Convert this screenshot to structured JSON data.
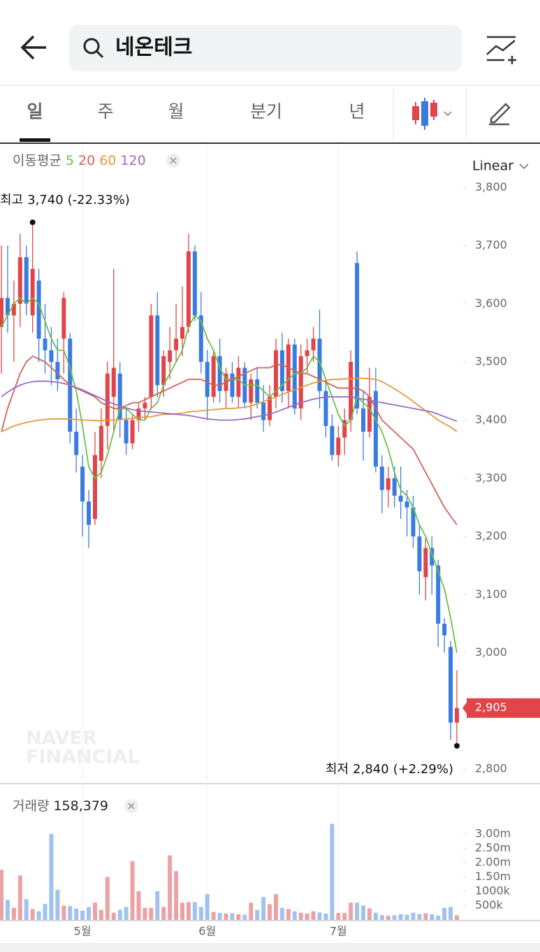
{
  "header": {
    "search": "네온테크"
  },
  "tabs": [
    "일",
    "주",
    "월",
    "분기",
    "년"
  ],
  "chart_data": {
    "type": "candlestick",
    "categories": [
      null,
      null,
      null,
      null,
      null,
      null,
      null,
      null,
      null,
      null,
      null,
      null,
      null,
      "5월",
      null,
      null,
      null,
      null,
      null,
      null,
      null,
      null,
      null,
      null,
      null,
      null,
      null,
      null,
      null,
      null,
      null,
      null,
      null,
      "6월",
      null,
      null,
      null,
      null,
      null,
      null,
      null,
      null,
      null,
      null,
      null,
      null,
      null,
      null,
      null,
      null,
      null,
      null,
      null,
      null,
      "7월",
      null,
      null,
      null,
      null,
      null,
      null,
      null,
      null,
      null,
      null,
      null,
      null,
      null,
      null,
      null,
      null,
      null,
      null,
      null
    ],
    "open": [
      3560,
      3610,
      3580,
      3600,
      3680,
      3580,
      3640,
      3540,
      3520,
      3500,
      3540,
      3540,
      3380,
      3320,
      3260,
      3230,
      3330,
      3390,
      3440,
      3480,
      3400,
      3360,
      3400,
      3420,
      3440,
      3580,
      3460,
      3500,
      3520,
      3540,
      3560,
      3690,
      3580,
      3500,
      3440,
      3510,
      3450,
      3480,
      3440,
      3490,
      3430,
      3470,
      3430,
      3400,
      3440,
      3520,
      3450,
      3530,
      3420,
      3510,
      3520,
      3540,
      3450,
      3390,
      3340,
      3370,
      3400,
      3670,
      3420,
      3380,
      3450,
      3320,
      3280,
      3300,
      3270,
      3260,
      3250,
      3200,
      3130,
      3180,
      3150,
      3050,
      3010,
      2880
    ],
    "high": [
      3700,
      3700,
      3640,
      3720,
      3700,
      3740,
      3660,
      3600,
      3560,
      3540,
      3620,
      3550,
      3420,
      3340,
      3280,
      3380,
      3420,
      3500,
      3660,
      3500,
      3420,
      3410,
      3430,
      3440,
      3600,
      3620,
      3520,
      3560,
      3600,
      3630,
      3720,
      3700,
      3620,
      3520,
      3520,
      3540,
      3490,
      3500,
      3510,
      3500,
      3480,
      3490,
      3460,
      3460,
      3540,
      3550,
      3540,
      3540,
      3530,
      3540,
      3560,
      3590,
      3470,
      3410,
      3390,
      3420,
      3520,
      3690,
      3450,
      3490,
      3490,
      3340,
      3320,
      3320,
      3320,
      3280,
      3270,
      3220,
      3200,
      3200,
      3160,
      3060,
      3020,
      2970
    ],
    "low": [
      3480,
      3550,
      3500,
      3560,
      3580,
      3550,
      3500,
      3480,
      3460,
      3450,
      3480,
      3360,
      3310,
      3200,
      3180,
      3220,
      3300,
      3350,
      3380,
      3370,
      3340,
      3350,
      3380,
      3400,
      3420,
      3440,
      3440,
      3470,
      3500,
      3510,
      3550,
      3570,
      3480,
      3400,
      3430,
      3430,
      3420,
      3430,
      3420,
      3420,
      3400,
      3420,
      3380,
      3390,
      3420,
      3430,
      3420,
      3410,
      3400,
      3480,
      3500,
      3420,
      3370,
      3330,
      3320,
      3340,
      3380,
      3410,
      3330,
      3370,
      3310,
      3240,
      3250,
      3250,
      3230,
      3200,
      3180,
      3100,
      3090,
      3100,
      3010,
      3000,
      2850,
      2840
    ],
    "close": [
      3610,
      3580,
      3600,
      3680,
      3600,
      3660,
      3540,
      3520,
      3500,
      3470,
      3610,
      3380,
      3340,
      3260,
      3220,
      3340,
      3390,
      3480,
      3490,
      3400,
      3360,
      3400,
      3420,
      3430,
      3580,
      3460,
      3510,
      3520,
      3540,
      3560,
      3690,
      3580,
      3500,
      3440,
      3510,
      3450,
      3480,
      3440,
      3490,
      3430,
      3470,
      3430,
      3400,
      3440,
      3520,
      3450,
      3530,
      3420,
      3510,
      3520,
      3540,
      3450,
      3390,
      3340,
      3370,
      3400,
      3500,
      3420,
      3380,
      3440,
      3320,
      3280,
      3300,
      3270,
      3260,
      3250,
      3200,
      3140,
      3180,
      3150,
      3050,
      3030,
      2880,
      2905
    ],
    "up_color": "#e0454a",
    "down_color": "#3a7be0",
    "ylim": [
      2775,
      3822
    ],
    "yticks": [
      {
        "value": 3800,
        "label": "3,800"
      },
      {
        "value": 3700,
        "label": "3,700"
      },
      {
        "value": 3600,
        "label": "3,600"
      },
      {
        "value": 3500,
        "label": "3,500"
      },
      {
        "value": 3400,
        "label": "3,400"
      },
      {
        "value": 3300,
        "label": "3,300"
      },
      {
        "value": 3200,
        "label": "3,200"
      },
      {
        "value": 3100,
        "label": "3,100"
      },
      {
        "value": 3000,
        "label": "3,000"
      },
      {
        "value": 2800,
        "label": "2,800"
      }
    ],
    "scale": "Linear",
    "ma_label": "이동평균",
    "moving_averages": [
      {
        "name": "5",
        "color": "#6cc04a",
        "values": [
          3560,
          3580,
          3600,
          3610,
          3600,
          3610,
          3600,
          3570,
          3540,
          3520,
          3520,
          3490,
          3450,
          3390,
          3320,
          3300,
          3310,
          3340,
          3380,
          3420,
          3420,
          3410,
          3400,
          3400,
          3420,
          3430,
          3460,
          3480,
          3500,
          3520,
          3560,
          3580,
          3570,
          3540,
          3520,
          3490,
          3470,
          3470,
          3470,
          3460,
          3460,
          3460,
          3450,
          3440,
          3450,
          3460,
          3470,
          3480,
          3480,
          3490,
          3510,
          3500,
          3470,
          3440,
          3410,
          3390,
          3400,
          3440,
          3430,
          3420,
          3400,
          3380,
          3350,
          3310,
          3280,
          3270,
          3250,
          3220,
          3200,
          3170,
          3140,
          3110,
          3060,
          3000
        ]
      },
      {
        "name": "20",
        "color": "#d0645c",
        "values": [
          3380,
          3420,
          3450,
          3480,
          3500,
          3510,
          3505,
          3500,
          3490,
          3480,
          3470,
          3460,
          3455,
          3450,
          3445,
          3440,
          3430,
          3425,
          3420,
          3420,
          3425,
          3430,
          3430,
          3435,
          3440,
          3445,
          3450,
          3455,
          3460,
          3465,
          3470,
          3470,
          3470,
          3465,
          3460,
          3460,
          3465,
          3470,
          3475,
          3480,
          3485,
          3490,
          3490,
          3490,
          3495,
          3495,
          3490,
          3485,
          3480,
          3480,
          3475,
          3470,
          3465,
          3460,
          3455,
          3455,
          3455,
          3455,
          3450,
          3440,
          3420,
          3400,
          3390,
          3380,
          3370,
          3360,
          3350,
          3330,
          3310,
          3290,
          3270,
          3250,
          3235,
          3220
        ]
      },
      {
        "name": "60",
        "color": "#e59a3e",
        "values": [
          3380,
          3385,
          3390,
          3393,
          3396,
          3398,
          3400,
          3401,
          3402,
          3402,
          3402,
          3402,
          3401,
          3400,
          3400,
          3399,
          3399,
          3400,
          3400,
          3401,
          3402,
          3403,
          3404,
          3405,
          3406,
          3408,
          3410,
          3410,
          3411,
          3412,
          3414,
          3415,
          3416,
          3417,
          3418,
          3419,
          3420,
          3420,
          3421,
          3422,
          3424,
          3428,
          3432,
          3436,
          3440,
          3444,
          3448,
          3452,
          3456,
          3460,
          3464,
          3466,
          3468,
          3470,
          3470,
          3471,
          3471,
          3472,
          3472,
          3471,
          3470,
          3466,
          3460,
          3454,
          3447,
          3440,
          3432,
          3424,
          3416,
          3408,
          3400,
          3394,
          3388,
          3380
        ]
      },
      {
        "name": "120",
        "color": "#9a6dc2",
        "values": [
          3440,
          3448,
          3455,
          3460,
          3464,
          3466,
          3467,
          3467,
          3466,
          3465,
          3463,
          3460,
          3456,
          3452,
          3447,
          3442,
          3437,
          3432,
          3428,
          3424,
          3421,
          3418,
          3416,
          3415,
          3414,
          3413,
          3412,
          3411,
          3410,
          3409,
          3408,
          3406,
          3404,
          3402,
          3401,
          3400,
          3400,
          3400,
          3401,
          3402,
          3404,
          3406,
          3408,
          3410,
          3414,
          3418,
          3422,
          3426,
          3430,
          3433,
          3436,
          3438,
          3440,
          3440,
          3440,
          3440,
          3440,
          3438,
          3436,
          3434,
          3432,
          3430,
          3428,
          3426,
          3424,
          3422,
          3420,
          3418,
          3416,
          3414,
          3410,
          3406,
          3402,
          3398
        ]
      }
    ],
    "high_marker": {
      "label": "최고",
      "value": 3740,
      "price_label": "3,740",
      "change": "(-22.33%)"
    },
    "low_marker": {
      "label": "최저",
      "value": 2840,
      "price_label": "2,840",
      "change": "(+2.29%)"
    },
    "current_price_label": "2,905",
    "watermark": [
      "NAVER",
      "FINANCIAL"
    ],
    "volume": {
      "label": "거래량",
      "value_label": "158,379",
      "up_color": "#eca2a5",
      "down_color": "#9fc3ee",
      "values": [
        1750000,
        700000,
        420000,
        1550000,
        720000,
        380000,
        300000,
        560000,
        3000000,
        1050000,
        500000,
        480000,
        400000,
        320000,
        450000,
        600000,
        350000,
        1500000,
        250000,
        350000,
        450000,
        2050000,
        1000000,
        420000,
        420000,
        1000000,
        450000,
        2250000,
        1700000,
        600000,
        620000,
        620000,
        450000,
        900000,
        280000,
        240000,
        220000,
        230000,
        200000,
        180000,
        600000,
        350000,
        800000,
        550000,
        900000,
        420000,
        380000,
        300000,
        250000,
        220000,
        300000,
        260000,
        220000,
        3350000,
        240000,
        240000,
        600000,
        600000,
        500000,
        400000,
        250000,
        170000,
        140000,
        160000,
        200000,
        180000,
        250000,
        200000,
        230000,
        200000,
        150000,
        420000,
        450000,
        158379
      ],
      "ylim": [
        0,
        3460000
      ],
      "yticks": [
        {
          "value": 3000000,
          "label": "3.00m"
        },
        {
          "value": 2500000,
          "label": "2.50m"
        },
        {
          "value": 2000000,
          "label": "2.00m"
        },
        {
          "value": 1500000,
          "label": "1.50m"
        },
        {
          "value": 1000000,
          "label": "1000k"
        },
        {
          "value": 500000,
          "label": "500k"
        }
      ]
    }
  }
}
